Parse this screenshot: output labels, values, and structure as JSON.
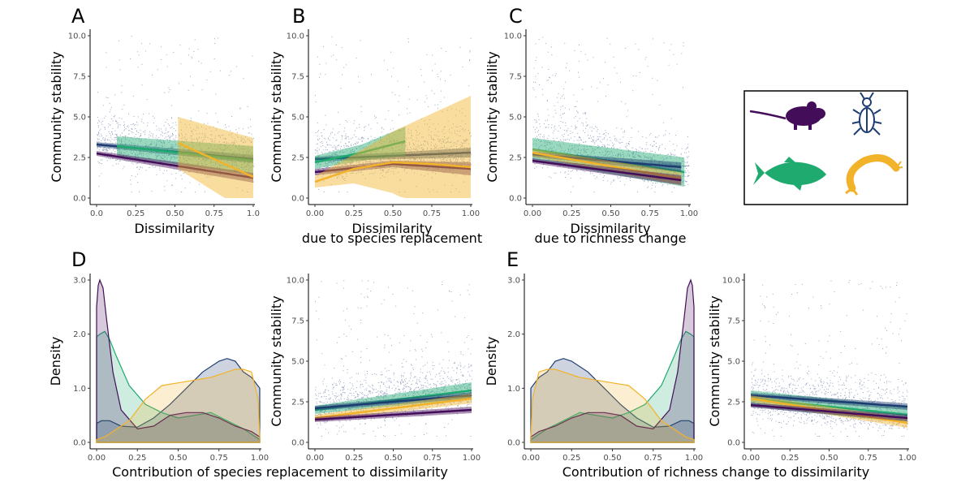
{
  "colors": {
    "mammal": "#440d5a",
    "insect": "#1d3d72",
    "fish": "#1faa70",
    "invert": "#f2b32a",
    "dots": "#3a4f8c"
  },
  "legend_icons": [
    "mouse-icon",
    "beetle-icon",
    "fish-icon",
    "shrimp-icon"
  ],
  "chart_data": [
    {
      "id": "A",
      "panel_letter": "A",
      "type": "scatter",
      "xlabel": "Dissimilarity",
      "ylabel": "Community stability",
      "xlim": [
        0,
        1
      ],
      "ylim": [
        0,
        10
      ],
      "x_ticks": [
        "0.0",
        "0.25",
        "0.50",
        "0.75",
        "1.0"
      ],
      "y_ticks": [
        "0.0",
        "2.5",
        "5.0",
        "7.5",
        "10.0"
      ],
      "series": [
        {
          "group": "insect",
          "x": [
            0.0,
            1.0
          ],
          "y": [
            3.3,
            2.4
          ],
          "band": [
            0.15,
            0.25
          ],
          "xrange": [
            0.0,
            1.0
          ]
        },
        {
          "group": "fish",
          "x": [
            0.13,
            1.0
          ],
          "y": [
            3.2,
            2.3
          ],
          "band": [
            0.6,
            0.9
          ],
          "xrange": [
            0.13,
            1.0
          ]
        },
        {
          "group": "mammal",
          "x": [
            0.0,
            1.0
          ],
          "y": [
            2.75,
            1.25
          ],
          "band": [
            0.15,
            0.3
          ],
          "xrange": [
            0.0,
            1.0
          ]
        },
        {
          "group": "invert",
          "x": [
            0.52,
            1.0
          ],
          "y": [
            3.4,
            1.3
          ],
          "band": [
            1.6,
            2.4
          ],
          "xrange": [
            0.52,
            1.0
          ]
        }
      ]
    },
    {
      "id": "B",
      "panel_letter": "B",
      "type": "scatter",
      "xlabel": "Dissimilarity",
      "xlabel2": "due to species replacement",
      "ylabel": "Community stability",
      "xlim": [
        0,
        1
      ],
      "ylim": [
        0,
        10
      ],
      "x_ticks": [
        "0.00",
        "0.25",
        "0.50",
        "0.75",
        "1.00"
      ],
      "y_ticks": [
        "0.0",
        "2.5",
        "5.0",
        "7.5",
        "10.0"
      ],
      "series": [
        {
          "group": "insect",
          "x": [
            0.0,
            0.5,
            1.0
          ],
          "y": [
            2.4,
            2.6,
            2.8
          ],
          "band": [
            0.15,
            0.2,
            0.3
          ],
          "xrange": [
            0.0,
            1.0
          ]
        },
        {
          "group": "fish",
          "x": [
            0.0,
            0.3,
            0.58
          ],
          "y": [
            2.2,
            2.8,
            3.5
          ],
          "band": [
            0.4,
            0.5,
            0.9
          ],
          "xrange": [
            0.0,
            0.58
          ]
        },
        {
          "group": "mammal",
          "x": [
            0.0,
            0.5,
            1.0
          ],
          "y": [
            1.6,
            2.1,
            1.8
          ],
          "band": [
            0.2,
            0.2,
            0.4
          ],
          "xrange": [
            0.0,
            1.0
          ]
        },
        {
          "group": "invert",
          "x": [
            0.0,
            0.25,
            0.5,
            0.75,
            1.0
          ],
          "y": [
            1.0,
            1.8,
            2.2,
            2.1,
            1.9
          ],
          "band": [
            0.35,
            0.9,
            1.9,
            3.1,
            4.4
          ],
          "xrange": [
            0.0,
            1.0
          ]
        }
      ]
    },
    {
      "id": "C",
      "panel_letter": "C",
      "type": "scatter",
      "xlabel": "Dissimilarity",
      "xlabel2": "due to richness change",
      "ylabel": "Community stability",
      "xlim": [
        0,
        1
      ],
      "ylim": [
        0,
        10
      ],
      "x_ticks": [
        "0.00",
        "0.25",
        "0.50",
        "0.75",
        "1.00"
      ],
      "y_ticks": [
        "0.0",
        "2.5",
        "5.0",
        "7.5",
        "10.0"
      ],
      "series": [
        {
          "group": "fish",
          "x": [
            0.0,
            0.97
          ],
          "y": [
            3.0,
            1.6
          ],
          "band": [
            0.7,
            0.9
          ],
          "xrange": [
            0.0,
            0.97
          ]
        },
        {
          "group": "insect",
          "x": [
            0.0,
            0.95
          ],
          "y": [
            2.7,
            1.9
          ],
          "band": [
            0.15,
            0.3
          ],
          "xrange": [
            0.0,
            0.95
          ]
        },
        {
          "group": "invert",
          "x": [
            0.0,
            0.95
          ],
          "y": [
            2.8,
            1.2
          ],
          "band": [
            0.25,
            0.4
          ],
          "xrange": [
            0.0,
            0.95
          ]
        },
        {
          "group": "mammal",
          "x": [
            0.0,
            0.95
          ],
          "y": [
            2.3,
            1.1
          ],
          "band": [
            0.15,
            0.3
          ],
          "xrange": [
            0.0,
            0.95
          ]
        }
      ]
    },
    {
      "id": "D1",
      "panel_letter": "D",
      "type": "area",
      "xlabel": "Contribution of species replacement to dissimilarity",
      "ylabel": "Density",
      "xlim": [
        0,
        1
      ],
      "ylim": [
        0,
        3
      ],
      "x_ticks": [
        "0.00",
        "0.25",
        "0.50",
        "0.75",
        "1.00"
      ],
      "y_ticks": [
        "0.0",
        "1.0",
        "2.0",
        "3.0"
      ],
      "series": [
        {
          "group": "insect",
          "x": [
            0,
            0.03,
            0.08,
            0.15,
            0.25,
            0.35,
            0.45,
            0.55,
            0.65,
            0.75,
            0.8,
            0.85,
            0.9,
            0.95,
            1.0
          ],
          "y": [
            0.35,
            0.4,
            0.4,
            0.3,
            0.28,
            0.45,
            0.7,
            1.0,
            1.3,
            1.5,
            1.55,
            1.5,
            1.3,
            1.2,
            1.0
          ]
        },
        {
          "group": "fish",
          "x": [
            0,
            0.02,
            0.05,
            0.08,
            0.12,
            0.2,
            0.3,
            0.4,
            0.5,
            0.6,
            0.7,
            0.8,
            0.9,
            0.95,
            1.0
          ],
          "y": [
            1.95,
            2.0,
            2.05,
            1.9,
            1.6,
            1.05,
            0.7,
            0.55,
            0.45,
            0.5,
            0.55,
            0.4,
            0.25,
            0.15,
            0.05
          ]
        },
        {
          "group": "mammal",
          "x": [
            0,
            0.01,
            0.02,
            0.04,
            0.06,
            0.1,
            0.15,
            0.25,
            0.35,
            0.45,
            0.55,
            0.65,
            0.75,
            0.85,
            0.95,
            1.0
          ],
          "y": [
            2.5,
            2.9,
            3.0,
            2.85,
            2.3,
            1.3,
            0.6,
            0.25,
            0.3,
            0.5,
            0.55,
            0.55,
            0.45,
            0.3,
            0.2,
            0.1
          ]
        },
        {
          "group": "invert",
          "x": [
            0,
            0.05,
            0.1,
            0.2,
            0.3,
            0.4,
            0.5,
            0.6,
            0.7,
            0.8,
            0.85,
            0.9,
            0.95,
            0.99,
            1.0
          ],
          "y": [
            0.05,
            0.1,
            0.2,
            0.4,
            0.8,
            1.05,
            1.1,
            1.15,
            1.2,
            1.3,
            1.35,
            1.35,
            1.3,
            0.8,
            0.1
          ]
        }
      ]
    },
    {
      "id": "D2",
      "panel_letter": "",
      "type": "scatter",
      "xlabel": "",
      "ylabel": "Community stability",
      "xlim": [
        0,
        1
      ],
      "ylim": [
        0,
        10
      ],
      "x_ticks": [
        "0.00",
        "0.25",
        "0.50",
        "0.75",
        "1.00"
      ],
      "y_ticks": [
        "0.0",
        "2.5",
        "5.0",
        "7.5",
        "10.0"
      ],
      "series": [
        {
          "group": "fish",
          "x": [
            0.0,
            1.0
          ],
          "y": [
            2.0,
            3.2
          ],
          "band": [
            0.25,
            0.5
          ],
          "xrange": [
            0.0,
            1.0
          ]
        },
        {
          "group": "insect",
          "x": [
            0.0,
            1.0
          ],
          "y": [
            2.1,
            2.9
          ],
          "band": [
            0.15,
            0.2
          ],
          "xrange": [
            0.0,
            1.0
          ]
        },
        {
          "group": "invert",
          "x": [
            0.0,
            1.0
          ],
          "y": [
            1.5,
            2.7
          ],
          "band": [
            0.2,
            0.3
          ],
          "xrange": [
            0.0,
            1.0
          ]
        },
        {
          "group": "mammal",
          "x": [
            0.0,
            1.0
          ],
          "y": [
            1.4,
            2.0
          ],
          "band": [
            0.15,
            0.2
          ],
          "xrange": [
            0.0,
            1.0
          ]
        }
      ]
    },
    {
      "id": "E1",
      "panel_letter": "E",
      "type": "area",
      "xlabel": "Contribution of richness change to dissimilarity",
      "ylabel": "Density",
      "xlim": [
        0,
        1
      ],
      "ylim": [
        0,
        3
      ],
      "x_ticks": [
        "0.00",
        "0.25",
        "0.50",
        "0.75",
        "1.00"
      ],
      "y_ticks": [
        "0.0",
        "1.0",
        "2.0",
        "3.0"
      ],
      "series": [
        {
          "group": "insect",
          "x": [
            0,
            0.05,
            0.1,
            0.15,
            0.2,
            0.25,
            0.35,
            0.45,
            0.55,
            0.65,
            0.75,
            0.85,
            0.92,
            0.97,
            1.0
          ],
          "y": [
            1.0,
            1.2,
            1.3,
            1.5,
            1.55,
            1.5,
            1.3,
            1.0,
            0.7,
            0.45,
            0.28,
            0.3,
            0.4,
            0.4,
            0.35
          ]
        },
        {
          "group": "fish",
          "x": [
            0,
            0.05,
            0.1,
            0.2,
            0.3,
            0.4,
            0.5,
            0.6,
            0.7,
            0.8,
            0.88,
            0.92,
            0.95,
            0.98,
            1.0
          ],
          "y": [
            0.05,
            0.15,
            0.25,
            0.4,
            0.55,
            0.5,
            0.45,
            0.55,
            0.7,
            1.05,
            1.6,
            1.9,
            2.05,
            2.0,
            1.95
          ]
        },
        {
          "group": "mammal",
          "x": [
            0,
            0.05,
            0.15,
            0.25,
            0.35,
            0.45,
            0.55,
            0.65,
            0.75,
            0.85,
            0.9,
            0.94,
            0.96,
            0.98,
            0.99,
            1.0
          ],
          "y": [
            0.1,
            0.2,
            0.3,
            0.45,
            0.55,
            0.55,
            0.5,
            0.3,
            0.25,
            0.6,
            1.3,
            2.3,
            2.85,
            3.0,
            2.9,
            2.5
          ]
        },
        {
          "group": "invert",
          "x": [
            0,
            0.01,
            0.05,
            0.1,
            0.15,
            0.2,
            0.3,
            0.4,
            0.5,
            0.6,
            0.7,
            0.8,
            0.9,
            0.95,
            1.0
          ],
          "y": [
            0.1,
            0.8,
            1.3,
            1.35,
            1.35,
            1.3,
            1.2,
            1.15,
            1.1,
            1.05,
            0.8,
            0.4,
            0.2,
            0.1,
            0.05
          ]
        }
      ]
    },
    {
      "id": "E2",
      "panel_letter": "",
      "type": "scatter",
      "xlabel": "",
      "ylabel": "Community stability",
      "xlim": [
        0,
        1
      ],
      "ylim": [
        0,
        10
      ],
      "x_ticks": [
        "0.00",
        "0.25",
        "0.50",
        "0.75",
        "1.00"
      ],
      "y_ticks": [
        "0.0",
        "2.5",
        "5.0",
        "7.5",
        "10.0"
      ],
      "series": [
        {
          "group": "fish",
          "x": [
            0.0,
            1.0
          ],
          "y": [
            2.7,
            1.7
          ],
          "band": [
            0.5,
            0.5
          ],
          "xrange": [
            0.0,
            1.0
          ]
        },
        {
          "group": "insect",
          "x": [
            0.0,
            1.0
          ],
          "y": [
            2.9,
            2.2
          ],
          "band": [
            0.15,
            0.2
          ],
          "xrange": [
            0.0,
            1.0
          ]
        },
        {
          "group": "invert",
          "x": [
            0.0,
            1.0
          ],
          "y": [
            2.7,
            1.2
          ],
          "band": [
            0.2,
            0.3
          ],
          "xrange": [
            0.0,
            1.0
          ]
        },
        {
          "group": "mammal",
          "x": [
            0.0,
            1.0
          ],
          "y": [
            2.3,
            1.5
          ],
          "band": [
            0.15,
            0.2
          ],
          "xrange": [
            0.0,
            1.0
          ]
        }
      ]
    }
  ]
}
